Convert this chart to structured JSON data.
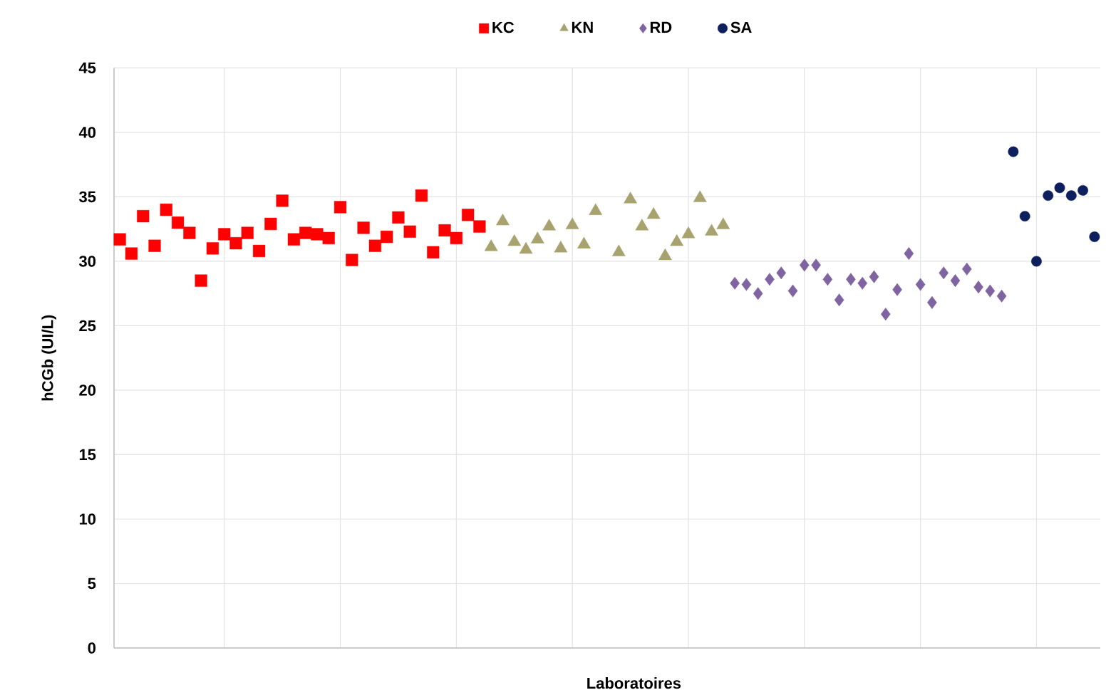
{
  "chart_data": {
    "type": "scatter",
    "xlabel": "Laboratoires",
    "ylabel": "hCGb (UI/L)",
    "categories": [
      null,
      null,
      null,
      null,
      null,
      null,
      null,
      null,
      null,
      null,
      null,
      null,
      null,
      null,
      null,
      null,
      null,
      null,
      null,
      null,
      null,
      null,
      null,
      null,
      null,
      null,
      null,
      null,
      null,
      null,
      null,
      null,
      null,
      null,
      null,
      null,
      null,
      null,
      null,
      null,
      null,
      null,
      null,
      null,
      null,
      null,
      null,
      null,
      null,
      null,
      null,
      null,
      null,
      null,
      null,
      null,
      null,
      null,
      null,
      null,
      null,
      null,
      null,
      null,
      null,
      null,
      null,
      null,
      null,
      null,
      null,
      null,
      null,
      null,
      null,
      null,
      null,
      null,
      null,
      null,
      null,
      null,
      null,
      null,
      null
    ],
    "ylim": [
      0,
      45
    ],
    "yticks": [
      0,
      5,
      10,
      15,
      20,
      25,
      30,
      35,
      40,
      45
    ],
    "tick_labels": "y",
    "grid": true,
    "legend": "top",
    "series": [
      {
        "name": "KC",
        "color": "#ff0000",
        "marker": "square",
        "values": [
          31.7,
          30.6,
          33.5,
          31.2,
          34.0,
          33.0,
          32.2,
          28.5,
          31.0,
          32.1,
          31.4,
          32.2,
          30.8,
          32.9,
          34.7,
          31.7,
          32.2,
          32.1,
          31.8,
          34.2,
          30.1,
          32.6,
          31.2,
          31.9,
          33.4,
          32.3,
          35.1,
          30.7,
          32.4,
          31.8,
          33.6,
          32.7,
          null,
          null,
          null,
          null,
          null,
          null,
          null,
          null,
          null,
          null,
          null,
          null,
          null,
          null,
          null,
          null,
          null,
          null,
          null,
          null,
          null,
          null,
          null,
          null,
          null,
          null,
          null,
          null,
          null,
          null,
          null,
          null,
          null,
          null,
          null,
          null,
          null,
          null,
          null,
          null,
          null,
          null,
          null,
          null,
          null,
          null,
          null,
          null,
          null,
          null,
          null,
          null,
          null
        ]
      },
      {
        "name": "KN",
        "color": "#a8a26e",
        "marker": "triangle",
        "values": [
          null,
          null,
          null,
          null,
          null,
          null,
          null,
          null,
          null,
          null,
          null,
          null,
          null,
          null,
          null,
          null,
          null,
          null,
          null,
          null,
          null,
          null,
          null,
          null,
          null,
          null,
          null,
          null,
          null,
          null,
          null,
          null,
          31.1,
          33.1,
          31.5,
          30.9,
          31.7,
          32.7,
          31.0,
          32.8,
          31.3,
          33.9,
          null,
          30.7,
          34.8,
          32.7,
          33.6,
          30.4,
          31.5,
          32.1,
          34.9,
          32.3,
          32.8,
          null,
          null,
          null,
          null,
          null,
          null,
          null,
          null,
          null,
          null,
          null,
          null,
          null,
          null,
          null,
          null,
          null,
          null,
          null,
          null,
          null,
          null,
          null,
          null,
          null,
          null,
          null,
          null,
          null,
          null,
          null,
          null
        ]
      },
      {
        "name": "RD",
        "color": "#8064a2",
        "marker": "diamond",
        "values": [
          null,
          null,
          null,
          null,
          null,
          null,
          null,
          null,
          null,
          null,
          null,
          null,
          null,
          null,
          null,
          null,
          null,
          null,
          null,
          null,
          null,
          null,
          null,
          null,
          null,
          null,
          null,
          null,
          null,
          null,
          null,
          null,
          null,
          null,
          null,
          null,
          null,
          null,
          null,
          null,
          null,
          null,
          null,
          null,
          null,
          null,
          null,
          null,
          null,
          null,
          null,
          null,
          null,
          28.3,
          28.2,
          27.5,
          28.6,
          29.1,
          27.7,
          29.7,
          29.7,
          28.6,
          27.0,
          28.6,
          28.3,
          28.8,
          25.9,
          27.8,
          30.6,
          28.2,
          26.8,
          29.1,
          28.5,
          29.4,
          28.0,
          27.7,
          27.3,
          null,
          null,
          null,
          null,
          null,
          null,
          null,
          null
        ]
      },
      {
        "name": "SA",
        "color": "#0d1f5c",
        "marker": "circle",
        "values": [
          null,
          null,
          null,
          null,
          null,
          null,
          null,
          null,
          null,
          null,
          null,
          null,
          null,
          null,
          null,
          null,
          null,
          null,
          null,
          null,
          null,
          null,
          null,
          null,
          null,
          null,
          null,
          null,
          null,
          null,
          null,
          null,
          null,
          null,
          null,
          null,
          null,
          null,
          null,
          null,
          null,
          null,
          null,
          null,
          null,
          null,
          null,
          null,
          null,
          null,
          null,
          null,
          null,
          null,
          null,
          null,
          null,
          null,
          null,
          null,
          null,
          null,
          null,
          null,
          null,
          null,
          null,
          null,
          null,
          null,
          null,
          null,
          null,
          null,
          null,
          null,
          null,
          38.5,
          33.5,
          30.0,
          35.1,
          35.7,
          35.1,
          35.5,
          31.9
        ]
      }
    ]
  }
}
